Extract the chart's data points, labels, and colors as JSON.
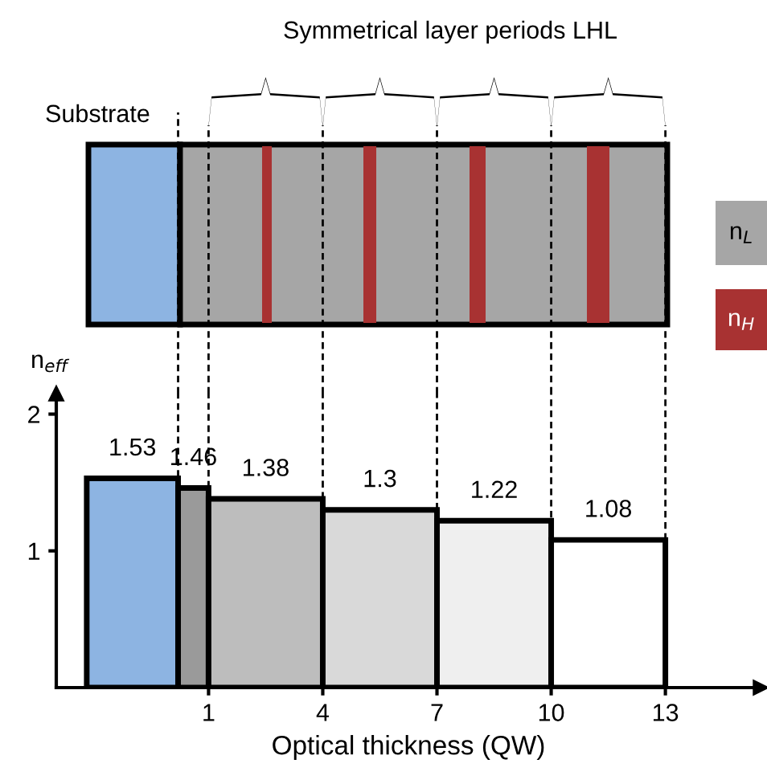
{
  "chart_data": {
    "type": "histogram",
    "title": "Symmetrical layer periods LHL",
    "xlabel": "Optical thickness (QW)",
    "ylabel": "n$_{eff}$",
    "bins": [
      -2.2,
      0.2,
      1,
      4,
      7,
      10,
      13
    ],
    "values": [
      1.53,
      1.46,
      1.38,
      1.3,
      1.22,
      1.08
    ],
    "colors": [
      "#8db4e2",
      "#9a9a9a",
      "#bdbdbd",
      "#d9d9d9",
      "#efefef",
      "#ffffff"
    ],
    "data_labels": true,
    "xlim": [
      -3,
      15.5
    ],
    "ylim": [
      0,
      2.15
    ],
    "xticks": [
      1,
      4,
      7,
      10,
      13
    ],
    "yticks": [
      1,
      2
    ],
    "grid": false,
    "legend": false,
    "ref_lines": [
      {
        "axis": "x",
        "value": 0.2,
        "color": "#000000",
        "line_style": "dashed"
      },
      {
        "axis": "x",
        "value": 1,
        "color": "#000000",
        "line_style": "dashed"
      },
      {
        "axis": "x",
        "value": 4,
        "color": "#000000",
        "line_style": "dashed"
      },
      {
        "axis": "x",
        "value": 7,
        "color": "#000000",
        "line_style": "dashed"
      },
      {
        "axis": "x",
        "value": 10,
        "color": "#000000",
        "line_style": "dashed"
      },
      {
        "axis": "x",
        "value": 13,
        "color": "#000000",
        "line_style": "dashed"
      }
    ],
    "annotations": [
      "Substrate",
      "n$_{L}$",
      "n$_{H}$"
    ]
  }
}
